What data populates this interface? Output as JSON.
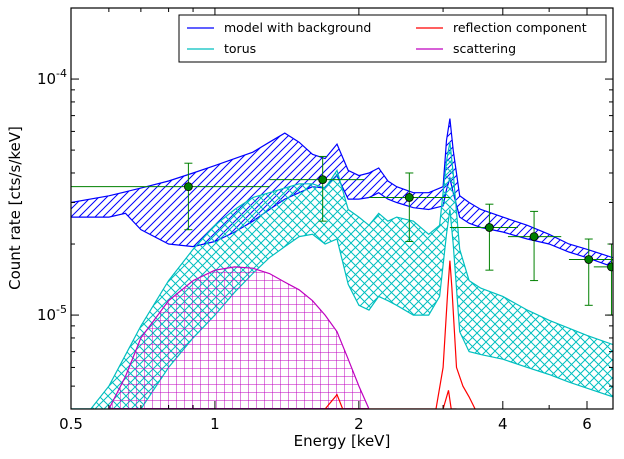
{
  "chart_data": {
    "type": "line",
    "xlabel": "Energy [keV]",
    "ylabel": "Count rate [cts/s/keV]",
    "xscale": "log",
    "yscale": "log",
    "xlim": [
      0.5,
      6.8
    ],
    "ylim": [
      4e-06,
      0.0002
    ],
    "x_ticks": [
      {
        "value": 0.5,
        "label": "0.5"
      },
      {
        "value": 1,
        "label": "1"
      },
      {
        "value": 2,
        "label": "2"
      },
      {
        "value": 4,
        "label": "4"
      },
      {
        "value": 6,
        "label": "6"
      }
    ],
    "y_ticks": [
      {
        "value": 1e-05,
        "base": "10",
        "exp": "-5"
      },
      {
        "value": 0.0001,
        "base": "10",
        "exp": "-4"
      }
    ],
    "legend_position": "top-right",
    "legend": [
      {
        "label": "model with background",
        "color": "#0000ff"
      },
      {
        "label": "reflection component",
        "color": "#ff0000"
      },
      {
        "label": "torus",
        "color": "#00bfbf"
      },
      {
        "label": "scattering",
        "color": "#bf00bf"
      }
    ],
    "data_points": {
      "name": "data",
      "color": "#008000",
      "points": [
        {
          "x": 0.88,
          "y": 3.5e-05,
          "xerr": [
            0.5,
            1.3
          ],
          "yerr": [
            2.3e-05,
            4.4e-05
          ]
        },
        {
          "x": 1.68,
          "y": 3.75e-05,
          "xerr": [
            1.3,
            2.05
          ],
          "yerr": [
            2.5e-05,
            4.7e-05
          ]
        },
        {
          "x": 2.55,
          "y": 3.15e-05,
          "xerr": [
            2.1,
            3.1
          ],
          "yerr": [
            2.05e-05,
            4e-05
          ]
        },
        {
          "x": 3.75,
          "y": 2.35e-05,
          "xerr": [
            3.1,
            4.3
          ],
          "yerr": [
            1.55e-05,
            2.95e-05
          ]
        },
        {
          "x": 4.65,
          "y": 2.15e-05,
          "xerr": [
            4.1,
            5.3
          ],
          "yerr": [
            1.4e-05,
            2.75e-05
          ]
        },
        {
          "x": 6.05,
          "y": 1.72e-05,
          "xerr": [
            5.5,
            6.8
          ],
          "yerr": [
            1.1e-05,
            2.1e-05
          ]
        },
        {
          "x": 6.75,
          "y": 1.6e-05,
          "xerr": [
            6.2,
            6.8
          ],
          "yerr": [
            1e-05,
            2e-05
          ]
        }
      ]
    },
    "series": [
      {
        "name": "model with background",
        "color": "#0000ff",
        "hatch": "diagonal",
        "upper": [
          [
            0.5,
            3e-05
          ],
          [
            0.6,
            3.2e-05
          ],
          [
            0.7,
            3.45e-05
          ],
          [
            0.8,
            3.7e-05
          ],
          [
            0.9,
            4e-05
          ],
          [
            1.0,
            4.3e-05
          ],
          [
            1.1,
            4.6e-05
          ],
          [
            1.2,
            4.9e-05
          ],
          [
            1.3,
            5.4e-05
          ],
          [
            1.4,
            5.9e-05
          ],
          [
            1.5,
            5.4e-05
          ],
          [
            1.6,
            4.8e-05
          ],
          [
            1.7,
            4.6e-05
          ],
          [
            1.8,
            5.3e-05
          ],
          [
            1.9,
            4.1e-05
          ],
          [
            2.0,
            3.9e-05
          ],
          [
            2.1,
            4e-05
          ],
          [
            2.2,
            4.2e-05
          ],
          [
            2.3,
            3.7e-05
          ],
          [
            2.4,
            3.5e-05
          ],
          [
            2.6,
            3.3e-05
          ],
          [
            2.8,
            3.3e-05
          ],
          [
            3.0,
            3.5e-05
          ],
          [
            3.05,
            5.5e-05
          ],
          [
            3.1,
            6.8e-05
          ],
          [
            3.15,
            5e-05
          ],
          [
            3.25,
            3.2e-05
          ],
          [
            3.4,
            3e-05
          ],
          [
            3.6,
            2.8e-05
          ],
          [
            4.0,
            2.6e-05
          ],
          [
            4.5,
            2.4e-05
          ],
          [
            5.0,
            2.2e-05
          ],
          [
            5.5,
            2e-05
          ],
          [
            6.0,
            1.9e-05
          ],
          [
            6.8,
            1.75e-05
          ]
        ],
        "lower": [
          [
            0.5,
            2.6e-05
          ],
          [
            0.6,
            2.6e-05
          ],
          [
            0.65,
            2.7e-05
          ],
          [
            0.7,
            2.3e-05
          ],
          [
            0.8,
            2e-05
          ],
          [
            0.9,
            1.95e-05
          ],
          [
            1.0,
            2.05e-05
          ],
          [
            1.1,
            2.25e-05
          ],
          [
            1.2,
            2.5e-05
          ],
          [
            1.3,
            2.8e-05
          ],
          [
            1.4,
            3.1e-05
          ],
          [
            1.5,
            3.3e-05
          ],
          [
            1.6,
            3.5e-05
          ],
          [
            1.7,
            3.45e-05
          ],
          [
            1.8,
            3.9e-05
          ],
          [
            1.9,
            3.1e-05
          ],
          [
            2.0,
            3.1e-05
          ],
          [
            2.1,
            3.15e-05
          ],
          [
            2.2,
            3.3e-05
          ],
          [
            2.3,
            3.1e-05
          ],
          [
            2.4,
            3e-05
          ],
          [
            2.6,
            2.85e-05
          ],
          [
            2.8,
            2.8e-05
          ],
          [
            3.0,
            2.9e-05
          ],
          [
            3.05,
            3.4e-05
          ],
          [
            3.1,
            3.8e-05
          ],
          [
            3.15,
            3.3e-05
          ],
          [
            3.25,
            2.6e-05
          ],
          [
            3.4,
            2.45e-05
          ],
          [
            3.6,
            2.35e-05
          ],
          [
            4.0,
            2.25e-05
          ],
          [
            4.5,
            2.1e-05
          ],
          [
            5.0,
            2e-05
          ],
          [
            5.5,
            1.85e-05
          ],
          [
            6.0,
            1.75e-05
          ],
          [
            6.8,
            1.6e-05
          ]
        ]
      },
      {
        "name": "torus",
        "color": "#00bfbf",
        "hatch": "cross",
        "upper": [
          [
            0.5,
            4e-06
          ],
          [
            0.55,
            4e-06
          ],
          [
            0.6,
            5e-06
          ],
          [
            0.7,
            9e-06
          ],
          [
            0.8,
            1.4e-05
          ],
          [
            0.9,
            1.9e-05
          ],
          [
            1.0,
            2.4e-05
          ],
          [
            1.1,
            2.8e-05
          ],
          [
            1.2,
            3.15e-05
          ],
          [
            1.3,
            3.3e-05
          ],
          [
            1.4,
            3.45e-05
          ],
          [
            1.5,
            3.6e-05
          ],
          [
            1.6,
            3.6e-05
          ],
          [
            1.7,
            3.45e-05
          ],
          [
            1.8,
            4.1e-05
          ],
          [
            1.9,
            2.8e-05
          ],
          [
            2.0,
            2.6e-05
          ],
          [
            2.1,
            2.4e-05
          ],
          [
            2.2,
            2.7e-05
          ],
          [
            2.3,
            2.5e-05
          ],
          [
            2.4,
            2.6e-05
          ],
          [
            2.6,
            2.5e-05
          ],
          [
            2.8,
            2.2e-05
          ],
          [
            2.95,
            2.4e-05
          ],
          [
            3.05,
            4.5e-05
          ],
          [
            3.1,
            5.4e-05
          ],
          [
            3.15,
            4e-05
          ],
          [
            3.25,
            1.9e-05
          ],
          [
            3.4,
            1.4e-05
          ],
          [
            3.6,
            1.3e-05
          ],
          [
            4.0,
            1.2e-05
          ],
          [
            4.5,
            1.05e-05
          ],
          [
            5.0,
            9.5e-06
          ],
          [
            5.5,
            8.8e-06
          ],
          [
            6.0,
            8.2e-06
          ],
          [
            6.8,
            7.5e-06
          ]
        ],
        "lower": [
          [
            0.5,
            4e-06
          ],
          [
            0.65,
            4e-06
          ],
          [
            0.7,
            4e-06
          ],
          [
            0.8,
            6e-06
          ],
          [
            0.9,
            8e-06
          ],
          [
            1.0,
            1e-05
          ],
          [
            1.1,
            1.25e-05
          ],
          [
            1.2,
            1.5e-05
          ],
          [
            1.3,
            1.75e-05
          ],
          [
            1.4,
            1.95e-05
          ],
          [
            1.5,
            2.15e-05
          ],
          [
            1.6,
            2.2e-05
          ],
          [
            1.7,
            2e-05
          ],
          [
            1.8,
            2.1e-05
          ],
          [
            1.9,
            1.35e-05
          ],
          [
            2.0,
            1.1e-05
          ],
          [
            2.1,
            1.05e-05
          ],
          [
            2.2,
            1.2e-05
          ],
          [
            2.3,
            1.15e-05
          ],
          [
            2.4,
            1.1e-05
          ],
          [
            2.6,
            1e-05
          ],
          [
            2.8,
            1e-05
          ],
          [
            2.95,
            1.2e-05
          ],
          [
            3.05,
            2.2e-05
          ],
          [
            3.1,
            2.8e-05
          ],
          [
            3.15,
            2e-05
          ],
          [
            3.25,
            8.5e-06
          ],
          [
            3.4,
            7e-06
          ],
          [
            3.6,
            6.8e-06
          ],
          [
            4.0,
            6.5e-06
          ],
          [
            4.5,
            6e-06
          ],
          [
            5.0,
            5.6e-06
          ],
          [
            5.5,
            5.2e-06
          ],
          [
            6.0,
            4.9e-06
          ],
          [
            6.8,
            4.5e-06
          ]
        ]
      },
      {
        "name": "scattering",
        "color": "#bf00bf",
        "hatch": "grid",
        "upper": [
          [
            0.6,
            4e-06
          ],
          [
            0.65,
            5.5e-06
          ],
          [
            0.7,
            8e-06
          ],
          [
            0.8,
            1.15e-05
          ],
          [
            0.9,
            1.4e-05
          ],
          [
            1.0,
            1.55e-05
          ],
          [
            1.1,
            1.6e-05
          ],
          [
            1.2,
            1.58e-05
          ],
          [
            1.3,
            1.5e-05
          ],
          [
            1.4,
            1.38e-05
          ],
          [
            1.5,
            1.28e-05
          ],
          [
            1.6,
            1.15e-05
          ],
          [
            1.7,
            1e-05
          ],
          [
            1.8,
            8.5e-06
          ],
          [
            1.9,
            6.5e-06
          ],
          [
            2.0,
            5e-06
          ],
          [
            2.1,
            4e-06
          ]
        ],
        "lower": [
          [
            0.6,
            4e-06
          ],
          [
            0.7,
            4e-06
          ],
          [
            0.8,
            4e-06
          ],
          [
            0.9,
            4e-06
          ],
          [
            1.0,
            4e-06
          ],
          [
            1.1,
            4e-06
          ],
          [
            1.2,
            4e-06
          ],
          [
            1.3,
            4e-06
          ],
          [
            1.4,
            4e-06
          ],
          [
            1.5,
            4e-06
          ],
          [
            1.6,
            4e-06
          ],
          [
            1.7,
            4e-06
          ],
          [
            1.8,
            4e-06
          ],
          [
            1.9,
            4e-06
          ],
          [
            2.0,
            4e-06
          ],
          [
            2.1,
            4e-06
          ]
        ]
      },
      {
        "name": "reflection component",
        "color": "#ff0000",
        "hatch": "none",
        "upper": [
          [
            1.7,
            4e-06
          ],
          [
            1.8,
            4.6e-06
          ],
          [
            1.85,
            4e-06
          ],
          [
            2.9,
            4e-06
          ],
          [
            3.0,
            6e-06
          ],
          [
            3.07,
            1.3e-05
          ],
          [
            3.1,
            1.7e-05
          ],
          [
            3.13,
            1.3e-05
          ],
          [
            3.2,
            6e-06
          ],
          [
            3.3,
            5e-06
          ],
          [
            3.4,
            4.5e-06
          ],
          [
            3.5,
            4e-06
          ]
        ],
        "lower": [
          [
            3.0,
            4e-06
          ],
          [
            3.08,
            4.8e-06
          ],
          [
            3.12,
            4e-06
          ],
          [
            3.2,
            4e-06
          ]
        ]
      }
    ]
  }
}
